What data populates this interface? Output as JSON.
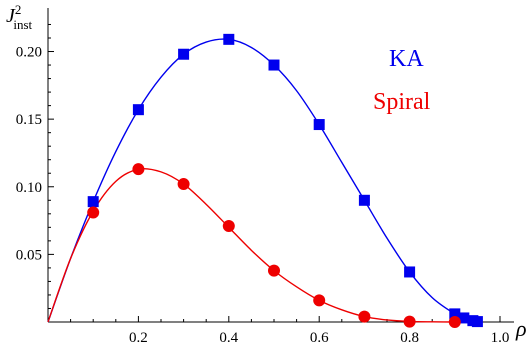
{
  "chart_data": {
    "type": "scatter",
    "xlabel": "ρ",
    "ylabel": {
      "base": "J",
      "superscript": "2",
      "subscript": "inst"
    },
    "xlim": [
      0,
      1.04
    ],
    "ylim": [
      0,
      0.225
    ],
    "xticks": [
      0.2,
      0.4,
      0.6,
      0.8,
      1.0
    ],
    "xtick_labels": [
      "0.2",
      "0.4",
      "0.6",
      "0.8",
      "1.0"
    ],
    "yticks": [
      0.05,
      0.1,
      0.15,
      0.2
    ],
    "ytick_labels": [
      "0.05",
      "0.10",
      "0.15",
      "0.20"
    ],
    "grid": false,
    "legend_placement": "top-right",
    "series": [
      {
        "name": "KA",
        "color": "#0000ee",
        "marker": "square",
        "points": [
          [
            0.1,
            0.089
          ],
          [
            0.2,
            0.157
          ],
          [
            0.3,
            0.198
          ],
          [
            0.4,
            0.209
          ],
          [
            0.5,
            0.19
          ],
          [
            0.6,
            0.146
          ],
          [
            0.7,
            0.09
          ],
          [
            0.8,
            0.037
          ],
          [
            0.9,
            0.006
          ],
          [
            0.92,
            0.003
          ],
          [
            0.94,
            0.001
          ],
          [
            0.95,
            0.0003
          ]
        ],
        "curve": [
          [
            0,
            0
          ],
          [
            0.05,
            0.047
          ],
          [
            0.1,
            0.089
          ],
          [
            0.15,
            0.126
          ],
          [
            0.2,
            0.157
          ],
          [
            0.25,
            0.181
          ],
          [
            0.3,
            0.198
          ],
          [
            0.35,
            0.207
          ],
          [
            0.4,
            0.209
          ],
          [
            0.45,
            0.203
          ],
          [
            0.5,
            0.19
          ],
          [
            0.55,
            0.171
          ],
          [
            0.6,
            0.146
          ],
          [
            0.65,
            0.118
          ],
          [
            0.7,
            0.09
          ],
          [
            0.75,
            0.062
          ],
          [
            0.8,
            0.037
          ],
          [
            0.85,
            0.018
          ],
          [
            0.9,
            0.006
          ],
          [
            0.93,
            0.0015
          ],
          [
            0.95,
            0.0
          ]
        ]
      },
      {
        "name": "Spiral",
        "color": "#ee0000",
        "marker": "circle",
        "points": [
          [
            0.1,
            0.081
          ],
          [
            0.2,
            0.113
          ],
          [
            0.3,
            0.102
          ],
          [
            0.4,
            0.071
          ],
          [
            0.5,
            0.038
          ],
          [
            0.6,
            0.016
          ],
          [
            0.7,
            0.004
          ],
          [
            0.8,
            0.0003
          ],
          [
            0.9,
            0.0
          ]
        ],
        "curve": [
          [
            0,
            0
          ],
          [
            0.05,
            0.047
          ],
          [
            0.1,
            0.082
          ],
          [
            0.15,
            0.104
          ],
          [
            0.2,
            0.113
          ],
          [
            0.25,
            0.111
          ],
          [
            0.3,
            0.102
          ],
          [
            0.35,
            0.087
          ],
          [
            0.4,
            0.07
          ],
          [
            0.45,
            0.053
          ],
          [
            0.5,
            0.038
          ],
          [
            0.55,
            0.026
          ],
          [
            0.6,
            0.016
          ],
          [
            0.65,
            0.009
          ],
          [
            0.7,
            0.004
          ],
          [
            0.75,
            0.0015
          ],
          [
            0.8,
            0.0004
          ],
          [
            0.85,
            0.0001
          ],
          [
            0.9,
            0.0
          ],
          [
            0.95,
            0.0
          ]
        ]
      }
    ]
  }
}
